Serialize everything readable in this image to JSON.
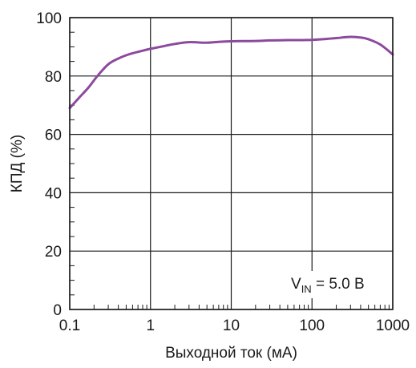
{
  "chart_data": {
    "type": "line",
    "xlabel": "Выходной ток (мА)",
    "ylabel": "КПД (%)",
    "x_scale": "log",
    "xlim": [
      0.1,
      1000
    ],
    "ylim": [
      0,
      100
    ],
    "grid": true,
    "x_ticks": [
      {
        "value": 0.1,
        "label": "0.1"
      },
      {
        "value": 1,
        "label": "1"
      },
      {
        "value": 10,
        "label": "10"
      },
      {
        "value": 100,
        "label": "100"
      },
      {
        "value": 1000,
        "label": "1000"
      }
    ],
    "y_ticks": [
      {
        "value": 0,
        "label": "0"
      },
      {
        "value": 20,
        "label": "20"
      },
      {
        "value": 40,
        "label": "40"
      },
      {
        "value": 60,
        "label": "60"
      },
      {
        "value": 80,
        "label": "80"
      },
      {
        "value": 100,
        "label": "100"
      }
    ],
    "annotation": {
      "prefix": "V",
      "subscript": "IN",
      "suffix": " = 5.0 В"
    },
    "series": [
      {
        "color": "#8c4a9e",
        "x": [
          0.1,
          0.13,
          0.17,
          0.22,
          0.3,
          0.4,
          0.55,
          0.75,
          1,
          1.5,
          2,
          3,
          5,
          7,
          10,
          20,
          30,
          50,
          70,
          100,
          150,
          200,
          300,
          400,
          500,
          700,
          1000
        ],
        "y": [
          69,
          72.5,
          76,
          80,
          84,
          86,
          87.5,
          88.5,
          89.3,
          90.3,
          91,
          91.6,
          91.4,
          91.7,
          91.9,
          92,
          92.2,
          92.3,
          92.3,
          92.4,
          92.7,
          93,
          93.4,
          93.2,
          92.6,
          90.8,
          87.4
        ]
      }
    ]
  }
}
